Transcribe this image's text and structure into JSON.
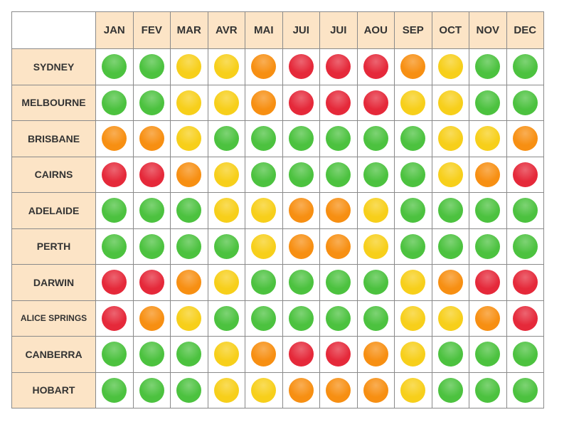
{
  "chart_data": {
    "type": "heatmap",
    "months": [
      "JAN",
      "FEV",
      "MAR",
      "AVR",
      "MAI",
      "JUI",
      "JUI",
      "AOU",
      "SEP",
      "OCT",
      "NOV",
      "DEC"
    ],
    "colors": {
      "green": "#4cc23f",
      "yellow": "#f7cf1a",
      "orange": "#f78f12",
      "red": "#e5293a"
    },
    "cities": [
      {
        "name": "SYDNEY",
        "ratings": [
          "green",
          "green",
          "yellow",
          "yellow",
          "orange",
          "red",
          "red",
          "red",
          "orange",
          "yellow",
          "green",
          "green"
        ]
      },
      {
        "name": "MELBOURNE",
        "ratings": [
          "green",
          "green",
          "yellow",
          "yellow",
          "orange",
          "red",
          "red",
          "red",
          "yellow",
          "yellow",
          "green",
          "green"
        ]
      },
      {
        "name": "BRISBANE",
        "ratings": [
          "orange",
          "orange",
          "yellow",
          "green",
          "green",
          "green",
          "green",
          "green",
          "green",
          "yellow",
          "yellow",
          "orange"
        ]
      },
      {
        "name": "CAIRNS",
        "ratings": [
          "red",
          "red",
          "orange",
          "yellow",
          "green",
          "green",
          "green",
          "green",
          "green",
          "yellow",
          "orange",
          "red"
        ]
      },
      {
        "name": "ADELAIDE",
        "ratings": [
          "green",
          "green",
          "green",
          "yellow",
          "yellow",
          "orange",
          "orange",
          "yellow",
          "green",
          "green",
          "green",
          "green"
        ]
      },
      {
        "name": "PERTH",
        "ratings": [
          "green",
          "green",
          "green",
          "green",
          "yellow",
          "orange",
          "orange",
          "yellow",
          "green",
          "green",
          "green",
          "green"
        ]
      },
      {
        "name": "DARWIN",
        "ratings": [
          "red",
          "red",
          "orange",
          "yellow",
          "green",
          "green",
          "green",
          "green",
          "yellow",
          "orange",
          "red",
          "red"
        ]
      },
      {
        "name": "ALICE SPRINGS",
        "ratings": [
          "red",
          "orange",
          "yellow",
          "green",
          "green",
          "green",
          "green",
          "green",
          "yellow",
          "yellow",
          "orange",
          "red"
        ]
      },
      {
        "name": "CANBERRA",
        "ratings": [
          "green",
          "green",
          "green",
          "yellow",
          "orange",
          "red",
          "red",
          "orange",
          "yellow",
          "green",
          "green",
          "green"
        ]
      },
      {
        "name": "HOBART",
        "ratings": [
          "green",
          "green",
          "green",
          "yellow",
          "yellow",
          "orange",
          "orange",
          "orange",
          "yellow",
          "green",
          "green",
          "green"
        ]
      }
    ]
  }
}
